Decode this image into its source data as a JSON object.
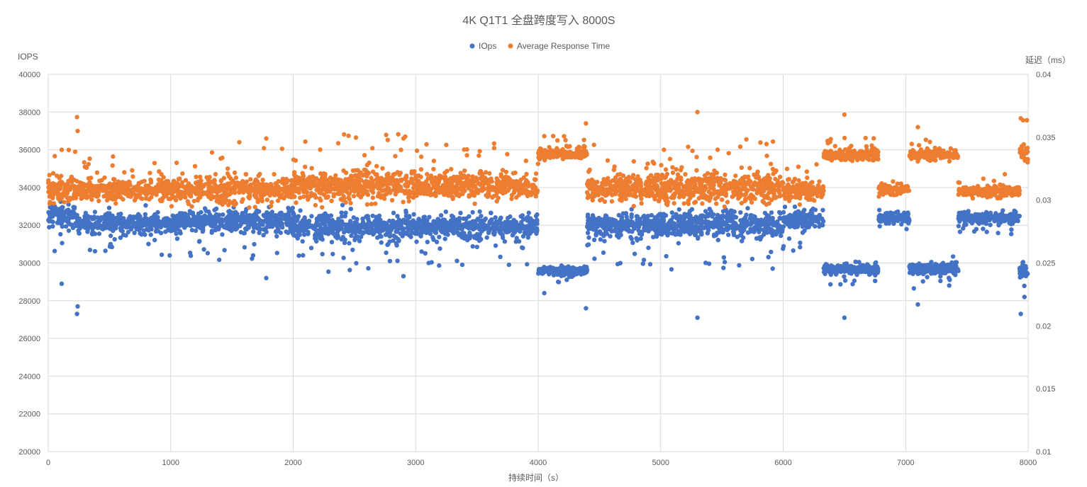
{
  "chart_data": {
    "type": "scatter",
    "title": "4K Q1T1 全盘跨度写入 8000S",
    "xlabel": "持续时间（s）",
    "ylabel": "IOPS",
    "y2label": "延迟（ms）",
    "xlim": [
      0,
      8000
    ],
    "ylim": [
      20000,
      40000
    ],
    "y2lim": [
      0.01,
      0.04
    ],
    "x_ticks": [
      "0",
      "1000",
      "2000",
      "3000",
      "4000",
      "5000",
      "6000",
      "7000",
      "8000"
    ],
    "y_ticks": [
      "20000",
      "22000",
      "24000",
      "26000",
      "28000",
      "30000",
      "32000",
      "34000",
      "36000",
      "38000",
      "40000"
    ],
    "y2_ticks": [
      "0.01",
      "0.015",
      "0.02",
      "0.025",
      "0.03",
      "0.035",
      "0.04"
    ],
    "grid": true,
    "legend_position": "top-center",
    "series": [
      {
        "name": "IOps",
        "axis": "left",
        "color": "#4472C4",
        "segments": [
          {
            "x": [
              0,
              240
            ],
            "level": 32500,
            "spread": 300
          },
          {
            "x": [
              240,
              1000
            ],
            "level": 32100,
            "spread": 250
          },
          {
            "x": [
              1000,
              2000
            ],
            "level": 32200,
            "spread": 300
          },
          {
            "x": [
              2000,
              3000
            ],
            "level": 31900,
            "spread": 350
          },
          {
            "x": [
              3000,
              4000
            ],
            "level": 31900,
            "spread": 300
          },
          {
            "x": [
              4000,
              4400
            ],
            "level": 29600,
            "spread": 120
          },
          {
            "x": [
              4400,
              5000
            ],
            "level": 32000,
            "spread": 300
          },
          {
            "x": [
              5000,
              6000
            ],
            "level": 32000,
            "spread": 350
          },
          {
            "x": [
              6000,
              6330
            ],
            "level": 32300,
            "spread": 250
          },
          {
            "x": [
              6330,
              6780
            ],
            "level": 29700,
            "spread": 120
          },
          {
            "x": [
              6780,
              7030
            ],
            "level": 32400,
            "spread": 150
          },
          {
            "x": [
              7030,
              7430
            ],
            "level": 29700,
            "spread": 150
          },
          {
            "x": [
              7430,
              7930
            ],
            "level": 32400,
            "spread": 150
          },
          {
            "x": [
              7930,
              8000
            ],
            "level": 29700,
            "spread": 200
          }
        ],
        "outliers": [
          {
            "x": 235,
            "y": 27300
          },
          {
            "x": 240,
            "y": 27700
          },
          {
            "x": 110,
            "y": 28900
          },
          {
            "x": 4390,
            "y": 27600
          },
          {
            "x": 4050,
            "y": 28400
          },
          {
            "x": 5300,
            "y": 27100
          },
          {
            "x": 6500,
            "y": 27100
          },
          {
            "x": 7100,
            "y": 27800
          },
          {
            "x": 7940,
            "y": 27300
          },
          {
            "x": 1780,
            "y": 29200
          },
          {
            "x": 2900,
            "y": 29300
          },
          {
            "x": 7970,
            "y": 28200
          }
        ]
      },
      {
        "name": "Average Response Time",
        "axis": "right",
        "color": "#ED7D31",
        "segments": [
          {
            "x": [
              0,
              240
            ],
            "level": 0.0308,
            "spread": 0.0005
          },
          {
            "x": [
              240,
              1000
            ],
            "level": 0.0308,
            "spread": 0.0004
          },
          {
            "x": [
              1000,
              2000
            ],
            "level": 0.0308,
            "spread": 0.0005
          },
          {
            "x": [
              2000,
              3000
            ],
            "level": 0.0311,
            "spread": 0.0006
          },
          {
            "x": [
              3000,
              4000
            ],
            "level": 0.0311,
            "spread": 0.0005
          },
          {
            "x": [
              4000,
              4400
            ],
            "level": 0.0337,
            "spread": 0.0002
          },
          {
            "x": [
              4400,
              5000
            ],
            "level": 0.0309,
            "spread": 0.0005
          },
          {
            "x": [
              5000,
              6000
            ],
            "level": 0.031,
            "spread": 0.0006
          },
          {
            "x": [
              6000,
              6330
            ],
            "level": 0.0307,
            "spread": 0.0004
          },
          {
            "x": [
              6330,
              6780
            ],
            "level": 0.0336,
            "spread": 0.0002
          },
          {
            "x": [
              6780,
              7030
            ],
            "level": 0.0308,
            "spread": 0.0002
          },
          {
            "x": [
              7030,
              7430
            ],
            "level": 0.0336,
            "spread": 0.0002
          },
          {
            "x": [
              7430,
              7930
            ],
            "level": 0.0307,
            "spread": 0.0002
          },
          {
            "x": [
              7930,
              8000
            ],
            "level": 0.0336,
            "spread": 0.0004
          }
        ],
        "outliers": [
          {
            "x": 235,
            "y": 0.0366
          },
          {
            "x": 240,
            "y": 0.0355
          },
          {
            "x": 110,
            "y": 0.034
          },
          {
            "x": 4390,
            "y": 0.0361
          },
          {
            "x": 5300,
            "y": 0.037
          },
          {
            "x": 6500,
            "y": 0.0368
          },
          {
            "x": 7100,
            "y": 0.0358
          },
          {
            "x": 7940,
            "y": 0.0365
          },
          {
            "x": 1780,
            "y": 0.0349
          },
          {
            "x": 2900,
            "y": 0.0349
          },
          {
            "x": 1560,
            "y": 0.0346
          },
          {
            "x": 3640,
            "y": 0.0345
          }
        ]
      }
    ]
  }
}
